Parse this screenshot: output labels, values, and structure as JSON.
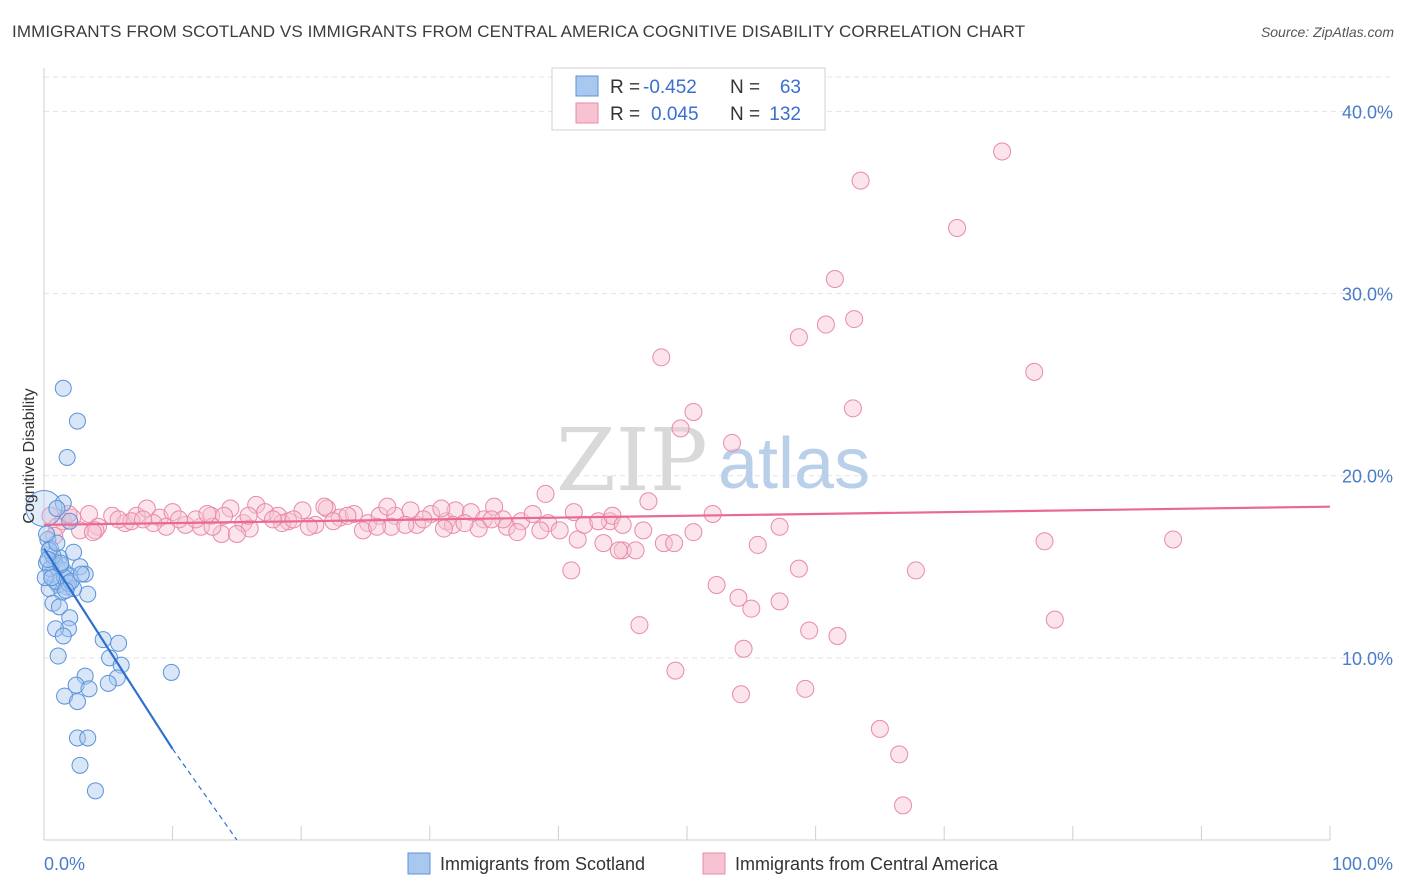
{
  "header": {
    "title": "IMMIGRANTS FROM SCOTLAND VS IMMIGRANTS FROM CENTRAL AMERICA COGNITIVE DISABILITY CORRELATION CHART",
    "source": "Source: ZipAtlas.com"
  },
  "watermark": {
    "zip": "ZIP",
    "atlas": "atlas"
  },
  "legend": {
    "r_label": "R =",
    "n_label": "N =",
    "rows": [
      {
        "r": "-0.452",
        "n": "63"
      },
      {
        "r": "0.045",
        "n": "132"
      }
    ]
  },
  "colors": {
    "scotland_fill": "#a9c8f0",
    "scotland_stroke": "#5b93d9",
    "scotland_line": "#2e6fd0",
    "central_fill": "#f7c3d3",
    "central_stroke": "#e98aa8",
    "central_line": "#e86a93"
  },
  "chart_data": {
    "type": "scatter",
    "title": "IMMIGRANTS FROM SCOTLAND VS IMMIGRANTS FROM CENTRAL AMERICA COGNITIVE DISABILITY CORRELATION CHART",
    "ylabel": "Cognitive Disability",
    "xlabel": "",
    "xlim": [
      0,
      100
    ],
    "ylim": [
      0,
      42
    ],
    "x_tick_labels": [
      "0.0%",
      "100.0%"
    ],
    "y_ticks": [
      10,
      20,
      30,
      40
    ],
    "y_tick_labels": [
      "10.0%",
      "20.0%",
      "30.0%",
      "40.0%"
    ],
    "grid": "horizontal dashed",
    "legend_position": "top-center",
    "series": [
      {
        "name": "Immigrants from Scotland",
        "r": -0.452,
        "n": 63,
        "trend": {
          "x0": 0,
          "y0": 16.0,
          "x1": 10,
          "y1": 5.0,
          "dashed_to_x": 15,
          "dashed_to_y": 0
        },
        "points": [
          [
            1.5,
            24.8
          ],
          [
            2.6,
            23.0
          ],
          [
            1.8,
            21.0
          ],
          [
            1.5,
            18.5
          ],
          [
            1.0,
            18.2
          ],
          [
            2.0,
            17.5
          ],
          [
            0.3,
            16.5
          ],
          [
            0.5,
            16.0
          ],
          [
            1.2,
            15.5
          ],
          [
            2.3,
            15.8
          ],
          [
            0.8,
            15.3
          ],
          [
            1.0,
            15.0
          ],
          [
            2.8,
            15.0
          ],
          [
            1.5,
            14.8
          ],
          [
            0.6,
            14.6
          ],
          [
            2.0,
            14.5
          ],
          [
            3.2,
            14.6
          ],
          [
            1.1,
            14.0
          ],
          [
            1.8,
            13.9
          ],
          [
            0.4,
            13.8
          ],
          [
            3.4,
            13.5
          ],
          [
            1.4,
            13.6
          ],
          [
            0.7,
            13.0
          ],
          [
            1.2,
            12.8
          ],
          [
            2.0,
            12.2
          ],
          [
            1.9,
            11.6
          ],
          [
            0.9,
            11.6
          ],
          [
            1.5,
            11.2
          ],
          [
            4.6,
            11.0
          ],
          [
            5.8,
            10.8
          ],
          [
            1.1,
            10.1
          ],
          [
            5.1,
            10.0
          ],
          [
            6.0,
            9.6
          ],
          [
            9.9,
            9.2
          ],
          [
            3.2,
            9.0
          ],
          [
            5.7,
            8.9
          ],
          [
            2.5,
            8.5
          ],
          [
            3.5,
            8.3
          ],
          [
            1.6,
            7.9
          ],
          [
            2.6,
            7.6
          ],
          [
            5.0,
            8.6
          ],
          [
            2.6,
            5.6
          ],
          [
            3.4,
            5.6
          ],
          [
            2.8,
            4.1
          ],
          [
            4.0,
            2.7
          ],
          [
            0.2,
            15.2
          ],
          [
            0.9,
            14.2
          ],
          [
            1.6,
            14.4
          ],
          [
            2.3,
            13.8
          ],
          [
            0.5,
            14.9
          ],
          [
            1.3,
            15.1
          ],
          [
            0.1,
            14.4
          ],
          [
            0.7,
            15.6
          ],
          [
            1.9,
            14.1
          ],
          [
            2.1,
            14.2
          ],
          [
            0.4,
            15.9
          ],
          [
            0.3,
            15.4
          ],
          [
            1.0,
            16.3
          ],
          [
            0.2,
            16.8
          ],
          [
            1.7,
            13.7
          ],
          [
            2.9,
            14.6
          ],
          [
            0.6,
            14.4
          ],
          [
            1.3,
            15.2
          ]
        ]
      },
      {
        "name": "Immigrants from Central America",
        "r": 0.045,
        "n": 132,
        "trend": {
          "x0": 0,
          "y0": 17.3,
          "x1": 100,
          "y1": 18.3
        },
        "points": [
          [
            74.5,
            37.8
          ],
          [
            63.5,
            36.2
          ],
          [
            71.0,
            33.6
          ],
          [
            61.5,
            30.8
          ],
          [
            60.8,
            28.3
          ],
          [
            63.0,
            28.6
          ],
          [
            58.7,
            27.6
          ],
          [
            48.0,
            26.5
          ],
          [
            77.0,
            25.7
          ],
          [
            50.5,
            23.5
          ],
          [
            49.5,
            22.6
          ],
          [
            62.9,
            23.7
          ],
          [
            53.5,
            21.8
          ],
          [
            39.0,
            19.0
          ],
          [
            47.0,
            18.6
          ],
          [
            52.0,
            17.9
          ],
          [
            57.2,
            17.2
          ],
          [
            44.0,
            17.5
          ],
          [
            46.6,
            17.0
          ],
          [
            50.5,
            16.9
          ],
          [
            41.5,
            16.5
          ],
          [
            43.5,
            16.3
          ],
          [
            55.5,
            16.2
          ],
          [
            45.0,
            15.9
          ],
          [
            46.0,
            15.9
          ],
          [
            44.7,
            15.9
          ],
          [
            48.2,
            16.3
          ],
          [
            49.0,
            16.3
          ],
          [
            77.8,
            16.4
          ],
          [
            87.8,
            16.5
          ],
          [
            41.0,
            14.8
          ],
          [
            58.7,
            14.9
          ],
          [
            67.8,
            14.8
          ],
          [
            52.3,
            14.0
          ],
          [
            54.0,
            13.3
          ],
          [
            57.2,
            13.1
          ],
          [
            55.0,
            12.7
          ],
          [
            46.3,
            11.8
          ],
          [
            78.6,
            12.1
          ],
          [
            59.5,
            11.5
          ],
          [
            61.7,
            11.2
          ],
          [
            54.4,
            10.5
          ],
          [
            49.1,
            9.3
          ],
          [
            54.2,
            8.0
          ],
          [
            59.2,
            8.3
          ],
          [
            65.0,
            6.1
          ],
          [
            66.5,
            4.7
          ],
          [
            66.8,
            1.9
          ],
          [
            0.5,
            17.8
          ],
          [
            1.5,
            17.5
          ],
          [
            2.2,
            17.7
          ],
          [
            3.5,
            17.9
          ],
          [
            4.2,
            17.2
          ],
          [
            5.3,
            17.8
          ],
          [
            6.3,
            17.4
          ],
          [
            7.2,
            17.8
          ],
          [
            8.0,
            18.2
          ],
          [
            9.0,
            17.7
          ],
          [
            10.0,
            18.0
          ],
          [
            11.0,
            17.3
          ],
          [
            12.2,
            17.2
          ],
          [
            13.0,
            17.8
          ],
          [
            13.8,
            16.8
          ],
          [
            14.5,
            18.2
          ],
          [
            15.5,
            17.4
          ],
          [
            16.5,
            18.4
          ],
          [
            17.2,
            18.0
          ],
          [
            18.2,
            17.8
          ],
          [
            19.0,
            17.5
          ],
          [
            20.1,
            18.1
          ],
          [
            21.1,
            17.3
          ],
          [
            22.0,
            18.2
          ],
          [
            23.0,
            17.7
          ],
          [
            24.1,
            17.9
          ],
          [
            25.2,
            17.4
          ],
          [
            26.1,
            17.8
          ],
          [
            27.3,
            17.8
          ],
          [
            28.5,
            18.1
          ],
          [
            29.0,
            17.3
          ],
          [
            30.1,
            17.9
          ],
          [
            31.3,
            17.5
          ],
          [
            32.0,
            18.1
          ],
          [
            33.2,
            18.0
          ],
          [
            34.2,
            17.6
          ],
          [
            35.0,
            18.3
          ],
          [
            36.0,
            17.2
          ],
          [
            37.1,
            17.5
          ],
          [
            38.0,
            17.9
          ],
          [
            39.2,
            17.4
          ],
          [
            40.1,
            17.0
          ],
          [
            41.2,
            18.0
          ],
          [
            42.0,
            17.3
          ],
          [
            43.1,
            17.5
          ],
          [
            44.2,
            17.8
          ],
          [
            45.0,
            17.3
          ],
          [
            4.0,
            17.0
          ],
          [
            6.8,
            17.5
          ],
          [
            9.5,
            17.2
          ],
          [
            11.8,
            17.6
          ],
          [
            14.0,
            17.8
          ],
          [
            16.0,
            17.1
          ],
          [
            18.5,
            17.4
          ],
          [
            20.6,
            17.2
          ],
          [
            22.5,
            17.5
          ],
          [
            24.8,
            17.0
          ],
          [
            27.0,
            17.2
          ],
          [
            29.5,
            17.6
          ],
          [
            31.8,
            17.3
          ],
          [
            33.8,
            17.1
          ],
          [
            35.7,
            17.6
          ],
          [
            38.6,
            17.0
          ],
          [
            1.0,
            17.2
          ],
          [
            2.8,
            17.0
          ],
          [
            3.8,
            16.9
          ],
          [
            13.1,
            17.2
          ],
          [
            15.9,
            17.8
          ],
          [
            19.4,
            17.6
          ],
          [
            23.6,
            17.8
          ],
          [
            26.7,
            18.3
          ],
          [
            28.1,
            17.3
          ],
          [
            30.9,
            18.2
          ],
          [
            34.8,
            17.6
          ],
          [
            36.8,
            16.9
          ],
          [
            10.5,
            17.6
          ],
          [
            8.5,
            17.4
          ],
          [
            17.8,
            17.6
          ],
          [
            21.8,
            18.3
          ],
          [
            25.9,
            17.2
          ],
          [
            31.1,
            17.1
          ],
          [
            32.7,
            17.4
          ],
          [
            5.8,
            17.6
          ],
          [
            12.7,
            17.9
          ],
          [
            0.8,
            16.7
          ],
          [
            1.9,
            17.9
          ],
          [
            7.7,
            17.6
          ],
          [
            15.0,
            16.8
          ]
        ]
      }
    ],
    "bottom_legend": [
      "Immigrants from Scotland",
      "Immigrants from Central America"
    ]
  }
}
